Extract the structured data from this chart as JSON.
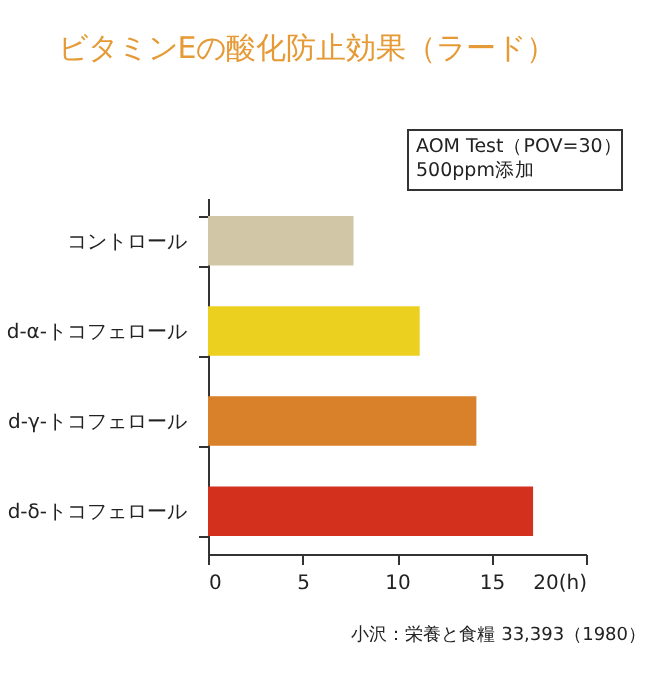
{
  "chart_data": {
    "type": "bar",
    "orientation": "horizontal",
    "title": "ビタミンEの酸化防止効果（ラード）",
    "categories": [
      "コントロール",
      "d-α-トコフェロール",
      "d-γ-トコフェロール",
      "d-δ-トコフェロール"
    ],
    "values": [
      7.7,
      11.2,
      14.2,
      17.2
    ],
    "colors": [
      "#d1c7a6",
      "#ecd020",
      "#d8802a",
      "#d3301e"
    ],
    "xlim": [
      0,
      20
    ],
    "xticks": [
      0,
      5,
      10,
      15,
      {
        "value": 20,
        "label": "20(h)"
      }
    ],
    "grid": false,
    "legend": false,
    "annotations": [
      "AOM Test（POV=30）\n500ppm添加",
      "小沢：栄養と食糧 33,393（1980）"
    ]
  }
}
